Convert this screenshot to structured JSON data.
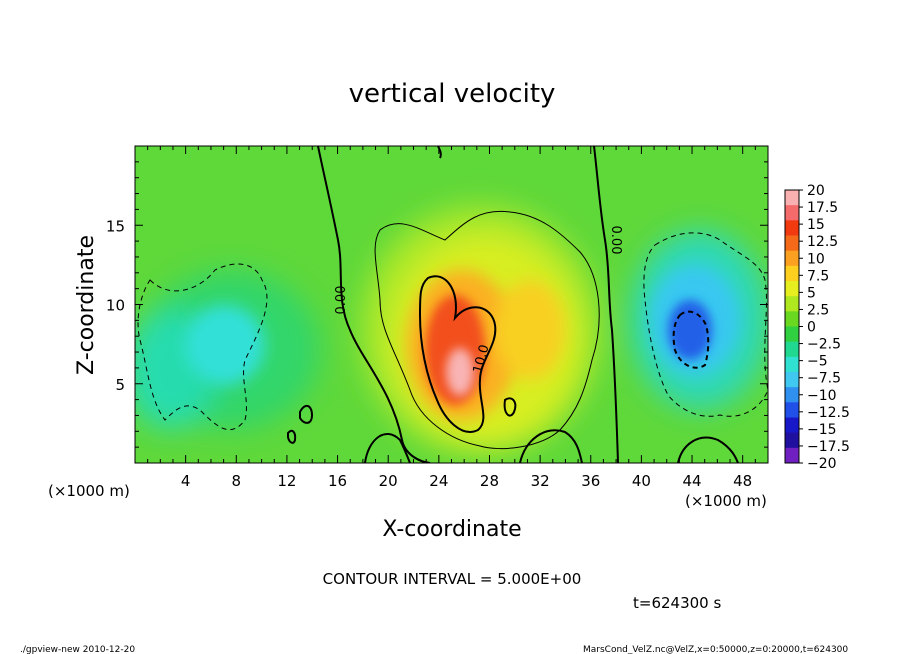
{
  "chart_data": {
    "type": "heatmap",
    "title": "vertical velocity",
    "xlabel": "X-coordinate",
    "ylabel": "Z-coordinate",
    "x_unit_left": "(×1000 m)",
    "x_unit_right": "(×1000 m)",
    "xlim": [
      0,
      50
    ],
    "ylim": [
      0,
      20
    ],
    "x_ticks": [
      4,
      8,
      12,
      16,
      20,
      24,
      28,
      32,
      36,
      40,
      44,
      48
    ],
    "y_ticks": [
      5,
      10,
      15
    ],
    "colorbar": {
      "labels": [
        "20",
        "17.5",
        "15",
        "12.5",
        "10",
        "7.5",
        "5",
        "2.5",
        "0",
        "−2.5",
        "−5",
        "−7.5",
        "−10",
        "−12.5",
        "−15",
        "−17.5",
        "−20"
      ],
      "colors": [
        "#f9b0b0",
        "#f56a6a",
        "#f23a10",
        "#f56a18",
        "#fba020",
        "#fdd020",
        "#e6ee20",
        "#b0e820",
        "#6ad820",
        "#30d040",
        "#20d890",
        "#30e0d0",
        "#40c8f0",
        "#3090f0",
        "#2050e8",
        "#1818c8",
        "#2010a0",
        "#7020c0"
      ]
    },
    "contour_labels": [
      "0.00",
      "0.00",
      "10.0"
    ],
    "contour_interval_text": "CONTOUR INTERVAL = 5.000E+00",
    "time_text": "t=624300 s"
  },
  "footer": {
    "left": "./gpview-new  2010-12-20",
    "right": "MarsCond_VelZ.nc@VelZ,x=0:50000,z=0:20000,t=624300"
  }
}
